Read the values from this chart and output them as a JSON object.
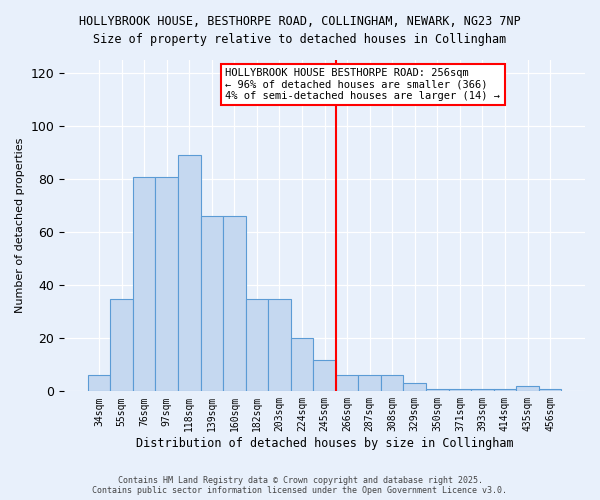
{
  "title1": "HOLLYBROOK HOUSE, BESTHORPE ROAD, COLLINGHAM, NEWARK, NG23 7NP",
  "title2": "Size of property relative to detached houses in Collingham",
  "xlabel": "Distribution of detached houses by size in Collingham",
  "ylabel": "Number of detached properties",
  "categories": [
    "34sqm",
    "55sqm",
    "76sqm",
    "97sqm",
    "118sqm",
    "139sqm",
    "160sqm",
    "182sqm",
    "203sqm",
    "224sqm",
    "245sqm",
    "266sqm",
    "287sqm",
    "308sqm",
    "329sqm",
    "350sqm",
    "371sqm",
    "393sqm",
    "414sqm",
    "435sqm",
    "456sqm"
  ],
  "bar_heights": [
    6,
    35,
    81,
    81,
    89,
    66,
    66,
    35,
    35,
    20,
    12,
    6,
    6,
    6,
    3,
    1,
    1,
    1,
    1,
    2,
    1
  ],
  "bar_color": "#c5d8f0",
  "bar_edge_color": "#5b9bd5",
  "vline_color": "red",
  "annotation_text": "HOLLYBROOK HOUSE BESTHORPE ROAD: 256sqm\n← 96% of detached houses are smaller (366)\n4% of semi-detached houses are larger (14) →",
  "ylim": [
    0,
    125
  ],
  "yticks": [
    0,
    20,
    40,
    60,
    80,
    100,
    120
  ],
  "footer1": "Contains HM Land Registry data © Crown copyright and database right 2025.",
  "footer2": "Contains public sector information licensed under the Open Government Licence v3.0.",
  "bg_color": "#e8f0fb",
  "grid_color": "#ffffff"
}
